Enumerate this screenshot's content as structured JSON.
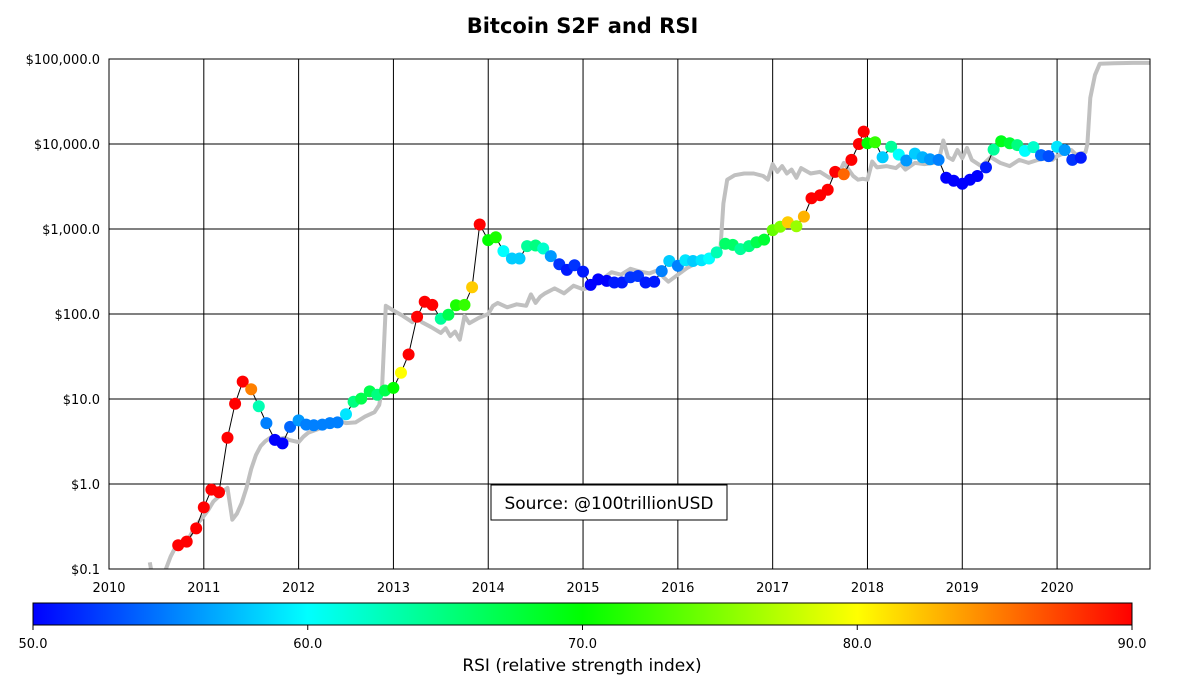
{
  "chart_data": {
    "type": "scatter",
    "title": "Bitcoin S2F and RSI",
    "y_scale": "log",
    "ylim": [
      0.1,
      100000
    ],
    "xlim": [
      2010.0,
      2020.98
    ],
    "grid": true,
    "y_ticks": [
      {
        "value": 0.1,
        "label": "$0.1"
      },
      {
        "value": 1,
        "label": "$1.0"
      },
      {
        "value": 10,
        "label": "$10.0"
      },
      {
        "value": 100,
        "label": "$100.0"
      },
      {
        "value": 1000,
        "label": "$1,000.0"
      },
      {
        "value": 10000,
        "label": "$10,000.0"
      },
      {
        "value": 100000,
        "label": "$100,000.0"
      }
    ],
    "x_ticks": [
      {
        "value": 2010,
        "label": "2010"
      },
      {
        "value": 2011,
        "label": "2011"
      },
      {
        "value": 2012,
        "label": "2012"
      },
      {
        "value": 2013,
        "label": "2013"
      },
      {
        "value": 2014,
        "label": "2014"
      },
      {
        "value": 2015,
        "label": "2015"
      },
      {
        "value": 2016,
        "label": "2016"
      },
      {
        "value": 2017,
        "label": "2017"
      },
      {
        "value": 2018,
        "label": "2018"
      },
      {
        "value": 2019,
        "label": "2019"
      },
      {
        "value": 2020,
        "label": "2020"
      }
    ],
    "s2f_model": [
      [
        2010.43,
        0.12
      ],
      [
        2010.45,
        0.09
      ],
      [
        2010.5,
        0.08
      ],
      [
        2010.55,
        0.07
      ],
      [
        2010.6,
        0.1
      ],
      [
        2010.65,
        0.14
      ],
      [
        2010.7,
        0.18
      ],
      [
        2010.75,
        0.2
      ],
      [
        2010.8,
        0.22
      ],
      [
        2010.85,
        0.24
      ],
      [
        2010.9,
        0.3
      ],
      [
        2010.95,
        0.36
      ],
      [
        2011.0,
        0.42
      ],
      [
        2011.05,
        0.5
      ],
      [
        2011.1,
        0.62
      ],
      [
        2011.15,
        0.7
      ],
      [
        2011.2,
        0.82
      ],
      [
        2011.25,
        0.9
      ],
      [
        2011.3,
        0.38
      ],
      [
        2011.35,
        0.45
      ],
      [
        2011.4,
        0.6
      ],
      [
        2011.45,
        0.9
      ],
      [
        2011.5,
        1.5
      ],
      [
        2011.55,
        2.2
      ],
      [
        2011.6,
        2.8
      ],
      [
        2011.65,
        3.2
      ],
      [
        2011.7,
        3.5
      ],
      [
        2011.75,
        3.2
      ],
      [
        2011.8,
        3.4
      ],
      [
        2011.85,
        3.5
      ],
      [
        2011.9,
        3.3
      ],
      [
        2011.95,
        3.2
      ],
      [
        2012.0,
        3.1
      ],
      [
        2012.05,
        3.6
      ],
      [
        2012.1,
        4.0
      ],
      [
        2012.2,
        4.4
      ],
      [
        2012.3,
        5.0
      ],
      [
        2012.4,
        5.6
      ],
      [
        2012.5,
        5.2
      ],
      [
        2012.6,
        5.3
      ],
      [
        2012.7,
        6.2
      ],
      [
        2012.8,
        7.0
      ],
      [
        2012.85,
        8.5
      ],
      [
        2012.88,
        13
      ],
      [
        2012.92,
        125
      ],
      [
        2013.0,
        110
      ],
      [
        2013.1,
        95
      ],
      [
        2013.2,
        80
      ],
      [
        2013.25,
        100
      ],
      [
        2013.3,
        80
      ],
      [
        2013.4,
        70
      ],
      [
        2013.5,
        60
      ],
      [
        2013.55,
        68
      ],
      [
        2013.6,
        55
      ],
      [
        2013.65,
        62
      ],
      [
        2013.7,
        50
      ],
      [
        2013.75,
        95
      ],
      [
        2013.8,
        78
      ],
      [
        2013.9,
        90
      ],
      [
        2014.0,
        100
      ],
      [
        2014.05,
        125
      ],
      [
        2014.1,
        135
      ],
      [
        2014.2,
        120
      ],
      [
        2014.3,
        130
      ],
      [
        2014.4,
        125
      ],
      [
        2014.45,
        170
      ],
      [
        2014.5,
        135
      ],
      [
        2014.55,
        160
      ],
      [
        2014.6,
        175
      ],
      [
        2014.7,
        200
      ],
      [
        2014.8,
        175
      ],
      [
        2014.9,
        215
      ],
      [
        2015.0,
        195
      ],
      [
        2015.1,
        210
      ],
      [
        2015.2,
        255
      ],
      [
        2015.3,
        310
      ],
      [
        2015.4,
        290
      ],
      [
        2015.5,
        340
      ],
      [
        2015.6,
        315
      ],
      [
        2015.7,
        300
      ],
      [
        2015.8,
        330
      ],
      [
        2015.85,
        270
      ],
      [
        2015.9,
        240
      ],
      [
        2016.0,
        290
      ],
      [
        2016.1,
        350
      ],
      [
        2016.2,
        400
      ],
      [
        2016.3,
        420
      ],
      [
        2016.4,
        500
      ],
      [
        2016.45,
        600
      ],
      [
        2016.48,
        2000
      ],
      [
        2016.52,
        3800
      ],
      [
        2016.6,
        4300
      ],
      [
        2016.7,
        4500
      ],
      [
        2016.8,
        4500
      ],
      [
        2016.9,
        4200
      ],
      [
        2016.95,
        3800
      ],
      [
        2017.0,
        5800
      ],
      [
        2017.05,
        4700
      ],
      [
        2017.1,
        5500
      ],
      [
        2017.15,
        4500
      ],
      [
        2017.2,
        5000
      ],
      [
        2017.25,
        4000
      ],
      [
        2017.3,
        5200
      ],
      [
        2017.4,
        4500
      ],
      [
        2017.5,
        4700
      ],
      [
        2017.6,
        4000
      ],
      [
        2017.7,
        4500
      ],
      [
        2017.75,
        6000
      ],
      [
        2017.85,
        4200
      ],
      [
        2017.9,
        3800
      ],
      [
        2017.95,
        3900
      ],
      [
        2018.0,
        3800
      ],
      [
        2018.05,
        6200
      ],
      [
        2018.1,
        5300
      ],
      [
        2018.2,
        5500
      ],
      [
        2018.3,
        5200
      ],
      [
        2018.35,
        5800
      ],
      [
        2018.4,
        5000
      ],
      [
        2018.5,
        6000
      ],
      [
        2018.6,
        5800
      ],
      [
        2018.7,
        6000
      ],
      [
        2018.75,
        6200
      ],
      [
        2018.8,
        11000
      ],
      [
        2018.85,
        7000
      ],
      [
        2018.9,
        6500
      ],
      [
        2018.95,
        8500
      ],
      [
        2019.0,
        6800
      ],
      [
        2019.05,
        9000
      ],
      [
        2019.1,
        6500
      ],
      [
        2019.2,
        5500
      ],
      [
        2019.3,
        7000
      ],
      [
        2019.4,
        6000
      ],
      [
        2019.5,
        5500
      ],
      [
        2019.6,
        6500
      ],
      [
        2019.7,
        6000
      ],
      [
        2019.8,
        6500
      ],
      [
        2019.9,
        6800
      ],
      [
        2019.95,
        6500
      ],
      [
        2020.0,
        7200
      ],
      [
        2020.1,
        8000
      ],
      [
        2020.15,
        8500
      ],
      [
        2020.2,
        7500
      ],
      [
        2020.3,
        8000
      ],
      [
        2020.32,
        10000
      ],
      [
        2020.35,
        35000
      ],
      [
        2020.4,
        65000
      ],
      [
        2020.45,
        88000
      ],
      [
        2020.6,
        89000
      ],
      [
        2020.8,
        90000
      ],
      [
        2020.98,
        90000
      ]
    ],
    "price_rsi": [
      [
        2010.73,
        0.19,
        90
      ],
      [
        2010.82,
        0.21,
        90
      ],
      [
        2010.92,
        0.3,
        90
      ],
      [
        2011.0,
        0.53,
        90
      ],
      [
        2011.08,
        0.86,
        90
      ],
      [
        2011.16,
        0.8,
        90
      ],
      [
        2011.25,
        3.5,
        90
      ],
      [
        2011.33,
        8.8,
        90
      ],
      [
        2011.41,
        16,
        90
      ],
      [
        2011.5,
        13,
        85
      ],
      [
        2011.58,
        8.2,
        63
      ],
      [
        2011.66,
        5.2,
        55
      ],
      [
        2011.75,
        3.3,
        50
      ],
      [
        2011.83,
        3.0,
        50
      ],
      [
        2011.91,
        4.7,
        54
      ],
      [
        2012.0,
        5.6,
        56
      ],
      [
        2012.08,
        5.0,
        55
      ],
      [
        2012.16,
        4.9,
        55
      ],
      [
        2012.25,
        5.0,
        55
      ],
      [
        2012.33,
        5.2,
        55
      ],
      [
        2012.41,
        5.3,
        55
      ],
      [
        2012.5,
        6.6,
        59
      ],
      [
        2012.58,
        9.3,
        65
      ],
      [
        2012.66,
        10.1,
        67
      ],
      [
        2012.75,
        12.3,
        67
      ],
      [
        2012.83,
        11.2,
        65
      ],
      [
        2012.91,
        12.6,
        67
      ],
      [
        2013.0,
        13.5,
        70
      ],
      [
        2013.08,
        20.4,
        80
      ],
      [
        2013.16,
        33.4,
        90
      ],
      [
        2013.25,
        93,
        90
      ],
      [
        2013.33,
        139,
        90
      ],
      [
        2013.41,
        128,
        90
      ],
      [
        2013.5,
        88,
        64
      ],
      [
        2013.58,
        98,
        67
      ],
      [
        2013.66,
        127,
        71
      ],
      [
        2013.75,
        128,
        72
      ],
      [
        2013.83,
        206,
        82
      ],
      [
        2013.91,
        1130,
        90
      ],
      [
        2014.0,
        740,
        70
      ],
      [
        2014.08,
        800,
        71
      ],
      [
        2014.16,
        550,
        60
      ],
      [
        2014.25,
        450,
        58
      ],
      [
        2014.33,
        450,
        58
      ],
      [
        2014.41,
        630,
        64
      ],
      [
        2014.5,
        640,
        65
      ],
      [
        2014.58,
        590,
        62
      ],
      [
        2014.66,
        480,
        56
      ],
      [
        2014.75,
        385,
        52
      ],
      [
        2014.83,
        330,
        51
      ],
      [
        2014.91,
        375,
        52
      ],
      [
        2015.0,
        315,
        51
      ],
      [
        2015.08,
        220,
        50
      ],
      [
        2015.16,
        255,
        50
      ],
      [
        2015.25,
        245,
        50
      ],
      [
        2015.33,
        235,
        51
      ],
      [
        2015.41,
        235,
        51
      ],
      [
        2015.5,
        270,
        52
      ],
      [
        2015.58,
        280,
        52
      ],
      [
        2015.66,
        235,
        51
      ],
      [
        2015.75,
        240,
        51
      ],
      [
        2015.83,
        320,
        55
      ],
      [
        2015.91,
        420,
        58
      ],
      [
        2016.0,
        370,
        55
      ],
      [
        2016.08,
        430,
        59
      ],
      [
        2016.16,
        420,
        58
      ],
      [
        2016.25,
        430,
        59
      ],
      [
        2016.33,
        450,
        60
      ],
      [
        2016.41,
        530,
        63
      ],
      [
        2016.5,
        670,
        66
      ],
      [
        2016.58,
        650,
        66
      ],
      [
        2016.66,
        580,
        64
      ],
      [
        2016.75,
        630,
        65
      ],
      [
        2016.83,
        700,
        67
      ],
      [
        2016.91,
        750,
        68
      ],
      [
        2017.0,
        970,
        74
      ],
      [
        2017.08,
        1060,
        75
      ],
      [
        2017.16,
        1200,
        82
      ],
      [
        2017.25,
        1080,
        76
      ],
      [
        2017.33,
        1400,
        83
      ],
      [
        2017.41,
        2300,
        90
      ],
      [
        2017.5,
        2500,
        90
      ],
      [
        2017.58,
        2900,
        90
      ],
      [
        2017.66,
        4700,
        90
      ],
      [
        2017.75,
        4400,
        86
      ],
      [
        2017.83,
        6500,
        90
      ],
      [
        2017.91,
        10000,
        90
      ],
      [
        2017.96,
        14000,
        90
      ],
      [
        2018.0,
        10200,
        70
      ],
      [
        2018.08,
        10500,
        72
      ],
      [
        2018.16,
        7000,
        58
      ],
      [
        2018.25,
        9300,
        64
      ],
      [
        2018.33,
        7500,
        60
      ],
      [
        2018.41,
        6400,
        56
      ],
      [
        2018.5,
        7700,
        58
      ],
      [
        2018.58,
        7000,
        57
      ],
      [
        2018.66,
        6600,
        56
      ],
      [
        2018.75,
        6500,
        55
      ],
      [
        2018.83,
        4000,
        50
      ],
      [
        2018.91,
        3700,
        50
      ],
      [
        2019.0,
        3400,
        50
      ],
      [
        2019.08,
        3800,
        50
      ],
      [
        2019.16,
        4200,
        50
      ],
      [
        2019.25,
        5300,
        51
      ],
      [
        2019.33,
        8600,
        64
      ],
      [
        2019.41,
        10800,
        69
      ],
      [
        2019.5,
        10200,
        68
      ],
      [
        2019.58,
        9700,
        65
      ],
      [
        2019.66,
        8300,
        60
      ],
      [
        2019.75,
        9200,
        62
      ],
      [
        2019.83,
        7400,
        54
      ],
      [
        2019.91,
        7200,
        53
      ],
      [
        2020.0,
        9300,
        59
      ],
      [
        2020.08,
        8500,
        56
      ],
      [
        2020.16,
        6500,
        52
      ],
      [
        2020.25,
        6900,
        51
      ]
    ],
    "colorbar": {
      "min": 50,
      "max": 90,
      "ticks": [
        "50.0",
        "60.0",
        "70.0",
        "80.0",
        "90.0"
      ],
      "label": "RSI (relative strength index)",
      "stops": [
        "#0000ff",
        "#00ffff",
        "#00ff00",
        "#ffff00",
        "#ff0000"
      ]
    },
    "annotation": "Source: @100trillionUSD",
    "colors": {
      "model_line": "#c0c0c0",
      "price_line": "#000000",
      "grid": "#000000"
    }
  }
}
